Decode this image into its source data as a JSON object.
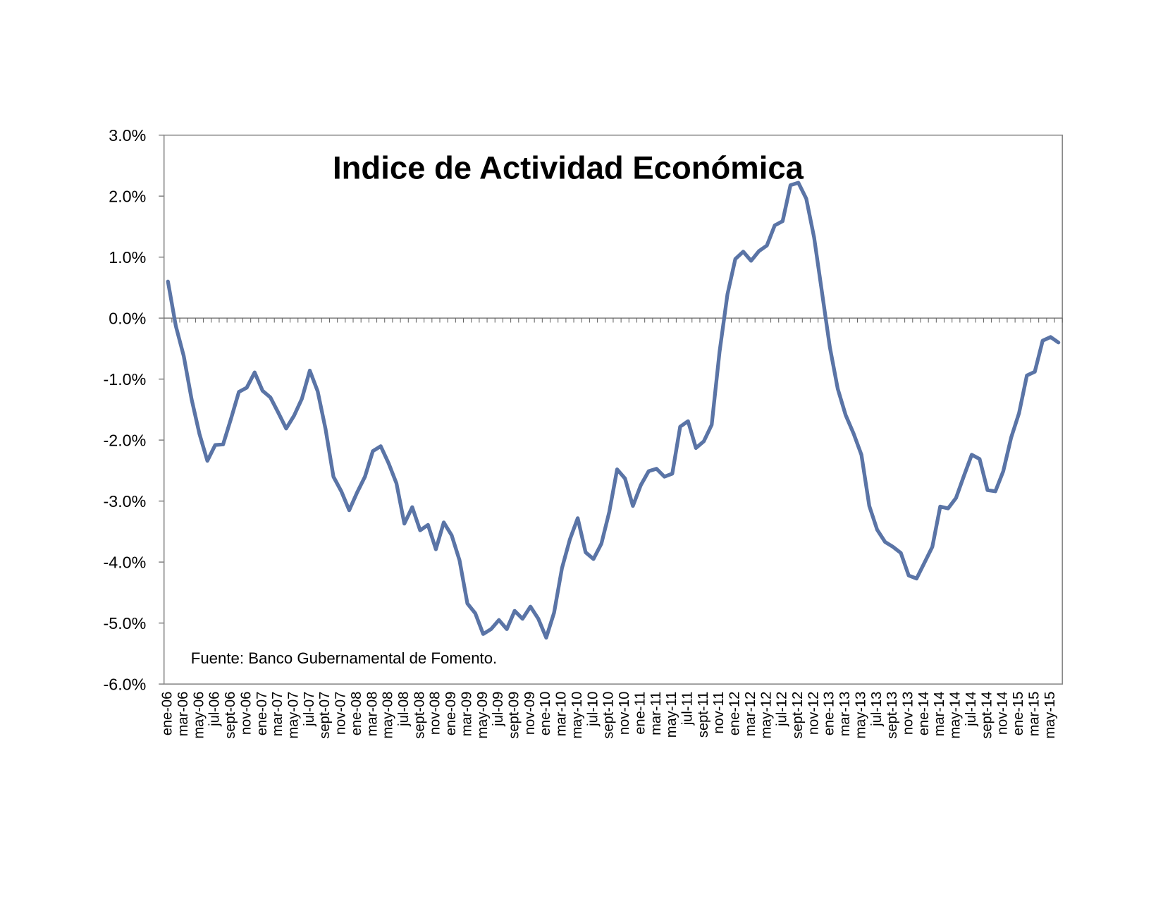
{
  "chart_data": {
    "type": "line",
    "title": "Indice de Actividad Económica",
    "annotation": "Fuente: Banco Gubernamental de Fomento.",
    "categories": [
      "ene-06",
      null,
      "mar-06",
      null,
      "may-06",
      null,
      "jul-06",
      null,
      "sept-06",
      null,
      "nov-06",
      null,
      "ene-07",
      null,
      "mar-07",
      null,
      "may-07",
      null,
      "jul-07",
      null,
      "sept-07",
      null,
      "nov-07",
      null,
      "ene-08",
      null,
      "mar-08",
      null,
      "may-08",
      null,
      "jul-08",
      null,
      "sept-08",
      null,
      "nov-08",
      null,
      "ene-09",
      null,
      "mar-09",
      null,
      "may-09",
      null,
      "jul-09",
      null,
      "sept-09",
      null,
      "nov-09",
      null,
      "ene-10",
      null,
      "mar-10",
      null,
      "may-10",
      null,
      "jul-10",
      null,
      "sept-10",
      null,
      "nov-10",
      null,
      "ene-11",
      null,
      "mar-11",
      null,
      "may-11",
      null,
      "jul-11",
      null,
      "sept-11",
      null,
      "nov-11",
      null,
      "ene-12",
      null,
      "mar-12",
      null,
      "may-12",
      null,
      "jul-12",
      null,
      "sept-12",
      null,
      "nov-12",
      null,
      "ene-13",
      null,
      "mar-13",
      null,
      "may-13",
      null,
      "jul-13",
      null,
      "sept-13",
      null,
      "nov-13",
      null,
      "ene-14",
      null,
      "mar-14",
      null,
      "may-14",
      null,
      "jul-14",
      null,
      "sept-14",
      null,
      "nov-14",
      null,
      "ene-15",
      null,
      "mar-15",
      null,
      "may-15",
      null
    ],
    "series": [
      {
        "color": "#5a74a6",
        "values": [
          0.6,
          -0.13,
          -0.62,
          -1.33,
          -1.9,
          -2.34,
          -2.08,
          -2.07,
          -1.65,
          -1.21,
          -1.14,
          -0.89,
          -1.19,
          -1.3,
          -1.55,
          -1.81,
          -1.6,
          -1.32,
          -0.86,
          -1.2,
          -1.82,
          -2.6,
          -2.84,
          -3.15,
          -2.86,
          -2.6,
          -2.18,
          -2.1,
          -2.38,
          -2.71,
          -3.37,
          -3.1,
          -3.48,
          -3.39,
          -3.79,
          -3.35,
          -3.56,
          -3.97,
          -4.68,
          -4.84,
          -5.18,
          -5.1,
          -4.95,
          -5.1,
          -4.8,
          -4.93,
          -4.73,
          -4.93,
          -5.24,
          -4.83,
          -4.1,
          -3.63,
          -3.28,
          -3.84,
          -3.95,
          -3.7,
          -3.18,
          -2.48,
          -2.63,
          -3.08,
          -2.74,
          -2.51,
          -2.47,
          -2.6,
          -2.55,
          -1.78,
          -1.69,
          -2.13,
          -2.02,
          -1.75,
          -0.55,
          0.39,
          0.97,
          1.09,
          0.94,
          1.1,
          1.19,
          1.52,
          1.59,
          2.18,
          2.22,
          1.96,
          1.32,
          0.42,
          -0.48,
          -1.16,
          -1.59,
          -1.89,
          -2.24,
          -3.08,
          -3.47,
          -3.67,
          -3.75,
          -3.85,
          -4.22,
          -4.27,
          -4.01,
          -3.75,
          -3.09,
          -3.12,
          -2.95,
          -2.59,
          -2.24,
          -2.31,
          -2.82,
          -2.84,
          -2.51,
          -1.96,
          -1.56,
          -0.94,
          -0.88,
          -0.37,
          -0.31,
          -0.4
        ]
      }
    ],
    "ylim": [
      -6,
      3
    ],
    "yticks": [
      {
        "value": 3,
        "label": "3.0%"
      },
      {
        "value": 2,
        "label": "2.0%"
      },
      {
        "value": 1,
        "label": "1.0%"
      },
      {
        "value": 0,
        "label": "0.0%"
      },
      {
        "value": -1,
        "label": "-1.0%"
      },
      {
        "value": -2,
        "label": "-2.0%"
      },
      {
        "value": -3,
        "label": "-3.0%"
      },
      {
        "value": -4,
        "label": "-4.0%"
      },
      {
        "value": -5,
        "label": "-5.0%"
      },
      {
        "value": -6,
        "label": "-6.0%"
      }
    ],
    "grid": false
  }
}
